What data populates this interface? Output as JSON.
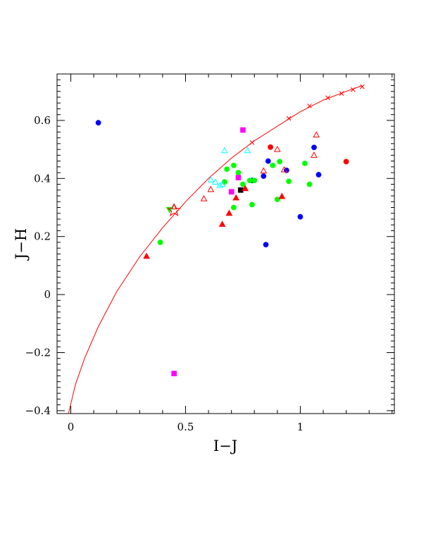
{
  "chart_data": {
    "type": "scatter",
    "title": "",
    "xlabel": "I−J",
    "ylabel": "J−H",
    "xlim": [
      -0.06,
      1.41
    ],
    "ylim": [
      -0.41,
      0.76
    ],
    "grid": false,
    "legend": "none",
    "x_ticks": [
      {
        "value": 0,
        "label": "0"
      },
      {
        "value": 0.5,
        "label": "0.5"
      },
      {
        "value": 1,
        "label": "1"
      }
    ],
    "y_ticks": [
      {
        "value": -0.4,
        "label": "−0.4"
      },
      {
        "value": -0.2,
        "label": "−0.2"
      },
      {
        "value": 0,
        "label": "0"
      },
      {
        "value": 0.2,
        "label": "0.2"
      },
      {
        "value": 0.4,
        "label": "0.4"
      },
      {
        "value": 0.6,
        "label": "0.6"
      }
    ],
    "curve": {
      "color": "#ff0000",
      "x": [
        -0.01,
        0.02,
        0.06,
        0.12,
        0.2,
        0.3,
        0.4,
        0.5,
        0.6,
        0.7,
        0.8,
        0.9,
        1.0,
        1.1,
        1.2,
        1.27
      ],
      "y": [
        -0.41,
        -0.31,
        -0.22,
        -0.11,
        0.01,
        0.13,
        0.23,
        0.32,
        0.4,
        0.47,
        0.53,
        0.58,
        0.63,
        0.67,
        0.7,
        0.72
      ],
      "crosses_x": [
        0.79,
        0.95,
        1.04,
        1.12,
        1.18,
        1.23,
        1.27
      ],
      "crosses_y": [
        0.524,
        0.607,
        0.65,
        0.678,
        0.693,
        0.706,
        0.716
      ]
    },
    "star": {
      "x": 0.45,
      "y": 0.29,
      "color": "#ff0000"
    },
    "series": [
      {
        "marker": "circle",
        "filled": true,
        "color": "#0000ff",
        "x": [
          0.12,
          0.79,
          0.84,
          0.86,
          0.94,
          1.06,
          1.08,
          1.0,
          0.85
        ],
        "y": [
          0.592,
          0.393,
          0.408,
          0.46,
          0.428,
          0.507,
          0.413,
          0.268,
          0.172
        ]
      },
      {
        "marker": "circle",
        "filled": true,
        "color": "#00ff00",
        "x": [
          0.39,
          0.67,
          0.68,
          0.71,
          0.73,
          0.75,
          0.78,
          0.8,
          0.88,
          0.91,
          0.9,
          0.95,
          1.02,
          1.04,
          0.71,
          0.79,
          0.67
        ],
        "y": [
          0.18,
          0.388,
          0.432,
          0.445,
          0.42,
          0.38,
          0.393,
          0.393,
          0.445,
          0.458,
          0.328,
          0.39,
          0.452,
          0.38,
          0.3,
          0.31,
          0.388
        ]
      },
      {
        "marker": "circle",
        "filled": true,
        "color": "#ff0000",
        "x": [
          0.87,
          1.2
        ],
        "y": [
          0.508,
          0.458
        ]
      },
      {
        "marker": "square",
        "filled": true,
        "color": "#ff00ff",
        "x": [
          0.75,
          0.73,
          0.7,
          0.45
        ],
        "y": [
          0.567,
          0.403,
          0.354,
          -0.272
        ]
      },
      {
        "marker": "square",
        "filled": true,
        "color": "#000000",
        "x": [
          0.74
        ],
        "y": [
          0.36
        ]
      },
      {
        "marker": "triangle",
        "filled": true,
        "color": "#ff0000",
        "x": [
          0.33,
          0.66,
          0.69,
          0.72,
          0.76,
          0.92
        ],
        "y": [
          0.132,
          0.242,
          0.28,
          0.333,
          0.365,
          0.338
        ]
      },
      {
        "marker": "triangle",
        "filled": false,
        "color": "#ff0000",
        "x": [
          0.45,
          0.58,
          0.61,
          0.84,
          0.9,
          0.93,
          1.06,
          1.07
        ],
        "y": [
          0.302,
          0.33,
          0.362,
          0.426,
          0.5,
          0.43,
          0.48,
          0.55
        ]
      },
      {
        "marker": "triangle",
        "filled": false,
        "color": "#00ffff",
        "x": [
          0.61,
          0.63,
          0.65,
          0.66,
          0.67,
          0.77
        ],
        "y": [
          0.395,
          0.387,
          0.376,
          0.38,
          0.496,
          0.496
        ]
      },
      {
        "marker": "triangle-down",
        "filled": true,
        "color": "#00ff00",
        "x": [
          0.43
        ],
        "y": [
          0.293
        ]
      }
    ]
  }
}
